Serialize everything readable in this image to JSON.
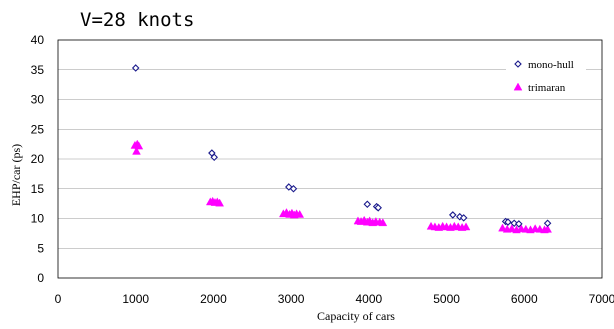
{
  "chart_data": {
    "type": "scatter",
    "title": "V=28 knots",
    "xlabel": "Capacity of cars",
    "ylabel": "EHP/car (ps)",
    "xlim": [
      0,
      7000
    ],
    "ylim": [
      0,
      40
    ],
    "x_ticks": [
      "0",
      "1000",
      "2000",
      "3000",
      "4000",
      "5000",
      "6000",
      "7000"
    ],
    "y_ticks": [
      "0",
      "5",
      "10",
      "15",
      "20",
      "25",
      "30",
      "35",
      "40"
    ],
    "grid": "horizontal",
    "legend_position": "top-right",
    "series": [
      {
        "name": "mono-hull",
        "marker": "diamond-open",
        "color": "#1a1a8c",
        "points": [
          [
            1000,
            35.3
          ],
          [
            1980,
            21.0
          ],
          [
            2010,
            20.3
          ],
          [
            2970,
            15.3
          ],
          [
            3030,
            15.0
          ],
          [
            3980,
            12.4
          ],
          [
            4100,
            12.0
          ],
          [
            4120,
            11.8
          ],
          [
            5080,
            10.6
          ],
          [
            5170,
            10.3
          ],
          [
            5220,
            10.1
          ],
          [
            5760,
            9.5
          ],
          [
            5790,
            9.4
          ],
          [
            5870,
            9.2
          ],
          [
            5930,
            9.1
          ],
          [
            6300,
            9.2
          ]
        ]
      },
      {
        "name": "trimaran",
        "marker": "triangle-filled",
        "color": "#ff00ff",
        "points": [
          [
            990,
            22.3
          ],
          [
            1020,
            22.5
          ],
          [
            1040,
            22.2
          ],
          [
            1010,
            21.3
          ],
          [
            1960,
            12.8
          ],
          [
            1990,
            12.9
          ],
          [
            2020,
            12.7
          ],
          [
            2050,
            12.8
          ],
          [
            2080,
            12.6
          ],
          [
            2900,
            10.8
          ],
          [
            2940,
            11.0
          ],
          [
            2980,
            10.7
          ],
          [
            3010,
            10.9
          ],
          [
            3040,
            10.6
          ],
          [
            3070,
            10.8
          ],
          [
            3110,
            10.7
          ],
          [
            3860,
            9.6
          ],
          [
            3900,
            9.5
          ],
          [
            3940,
            9.7
          ],
          [
            3980,
            9.4
          ],
          [
            4010,
            9.6
          ],
          [
            4050,
            9.3
          ],
          [
            4090,
            9.5
          ],
          [
            4140,
            9.4
          ],
          [
            4180,
            9.3
          ],
          [
            4800,
            8.7
          ],
          [
            4850,
            8.6
          ],
          [
            4900,
            8.5
          ],
          [
            4950,
            8.7
          ],
          [
            5000,
            8.6
          ],
          [
            5050,
            8.5
          ],
          [
            5100,
            8.7
          ],
          [
            5150,
            8.6
          ],
          [
            5200,
            8.5
          ],
          [
            5250,
            8.6
          ],
          [
            5720,
            8.4
          ],
          [
            5780,
            8.2
          ],
          [
            5840,
            8.3
          ],
          [
            5900,
            8.1
          ],
          [
            5960,
            8.3
          ],
          [
            6020,
            8.2
          ],
          [
            6080,
            8.1
          ],
          [
            6140,
            8.3
          ],
          [
            6200,
            8.2
          ],
          [
            6260,
            8.1
          ],
          [
            6300,
            8.2
          ]
        ]
      }
    ]
  }
}
